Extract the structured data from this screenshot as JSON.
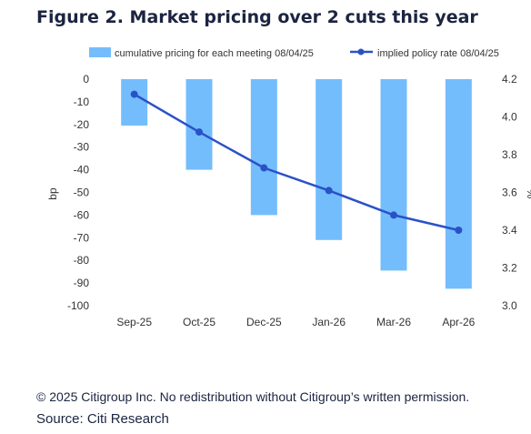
{
  "title": "Figure 2. Market pricing over 2 cuts this year",
  "footer": {
    "copyright": "© 2025 Citigroup Inc. No redistribution without Citigroup’s written permission.",
    "source": "Source: Citi Research"
  },
  "chart_data": {
    "type": "bar",
    "categories": [
      "Sep-25",
      "Oct-25",
      "Dec-25",
      "Jan-26",
      "Mar-26",
      "Apr-26"
    ],
    "series": [
      {
        "name": "cumulative pricing for each meeting  08/04/25",
        "type": "bar",
        "axis": "left",
        "values": [
          -20.5,
          -40,
          -60,
          -71,
          -84.5,
          -92.5
        ],
        "color": "#74bdfd"
      },
      {
        "name": "implied policy rate 08/04/25",
        "type": "line",
        "axis": "right",
        "values": [
          4.12,
          3.92,
          3.73,
          3.61,
          3.48,
          3.4
        ],
        "color": "#2a52c7"
      }
    ],
    "ylabel": "bp",
    "y2label": "%",
    "ylim": [
      -100,
      0
    ],
    "y2lim": [
      3.0,
      4.2
    ],
    "yticks": [
      "0",
      "-10",
      "-20",
      "-30",
      "-40",
      "-50",
      "-60",
      "-70",
      "-80",
      "-90",
      "-100"
    ],
    "y2ticks": [
      "4.2",
      "4.0",
      "3.8",
      "3.6",
      "3.4",
      "3.2",
      "3.0"
    ],
    "grid": false,
    "legend_position": "top"
  }
}
